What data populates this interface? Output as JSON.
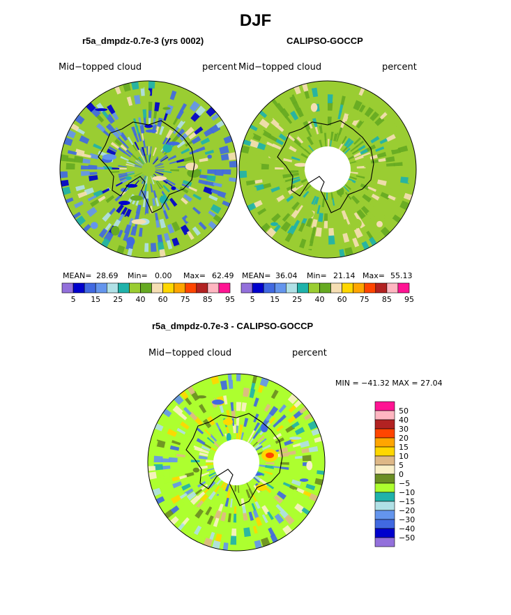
{
  "figure": {
    "title": "DJF",
    "diff_title": "r5a_dmpdz-0.7e-3 - CALIPSO-GOCCP"
  },
  "panels": [
    {
      "title": "r5a_dmpdz-0.7e-3 (yrs 0002)",
      "variable": "Mid−topped cloud",
      "units": "percent",
      "stats": {
        "mean_label": "MEAN=",
        "mean": "28.69",
        "min_label": "Min=",
        "min": "0.00",
        "max_label": "Max=",
        "max": "62.49"
      }
    },
    {
      "title": "CALIPSO-GOCCP",
      "variable": "Mid−topped cloud",
      "units": "percent",
      "stats": {
        "mean_label": "MEAN=",
        "mean": "36.04",
        "min_label": "Min=",
        "min": "21.14",
        "max_label": "Max=",
        "max": "55.13"
      }
    },
    {
      "title": "r5a_dmpdz-0.7e-3 - CALIPSO-GOCCP",
      "variable": "Mid−topped cloud",
      "units": "percent",
      "minmax": "MIN = −41.32 MAX =   27.04"
    }
  ],
  "chart_data": [
    {
      "type": "heatmap",
      "projection": "south-polar-stereographic",
      "title": "r5a_dmpdz-0.7e-3 (yrs 0002)",
      "variable": "Mid-topped cloud",
      "units": "percent",
      "mean": 28.69,
      "min": 0.0,
      "max": 62.49,
      "colorbar": {
        "orientation": "horizontal",
        "levels": [
          5,
          10,
          15,
          20,
          25,
          30,
          40,
          50,
          60,
          70,
          75,
          80,
          85,
          90,
          95
        ],
        "tick_labels": [
          "5",
          "15",
          "25",
          "40",
          "60",
          "75",
          "85",
          "95"
        ],
        "colors": [
          "#9370db",
          "#0000cd",
          "#4169e1",
          "#6495ed",
          "#b0e0e6",
          "#20b2aa",
          "#9acd32",
          "#66aa22",
          "#f5deb3",
          "#ffd700",
          "#ffa500",
          "#ff4500",
          "#b22222",
          "#ffb6c1",
          "#ff1493"
        ]
      }
    },
    {
      "type": "heatmap",
      "projection": "south-polar-stereographic",
      "title": "CALIPSO-GOCCP",
      "variable": "Mid-topped cloud",
      "units": "percent",
      "mean": 36.04,
      "min": 21.14,
      "max": 55.13,
      "colorbar": {
        "orientation": "horizontal",
        "levels": [
          5,
          10,
          15,
          20,
          25,
          30,
          40,
          50,
          60,
          70,
          75,
          80,
          85,
          90,
          95
        ],
        "tick_labels": [
          "5",
          "15",
          "25",
          "40",
          "60",
          "75",
          "85",
          "95"
        ],
        "colors": [
          "#9370db",
          "#0000cd",
          "#4169e1",
          "#6495ed",
          "#b0e0e6",
          "#20b2aa",
          "#9acd32",
          "#66aa22",
          "#f5deb3",
          "#ffd700",
          "#ffa500",
          "#ff4500",
          "#b22222",
          "#ffb6c1",
          "#ff1493"
        ]
      }
    },
    {
      "type": "heatmap",
      "projection": "south-polar-stereographic",
      "title": "r5a_dmpdz-0.7e-3 - CALIPSO-GOCCP",
      "variable": "Mid-topped cloud",
      "units": "percent",
      "min": -41.32,
      "max": 27.04,
      "colorbar": {
        "orientation": "vertical",
        "tick_labels": [
          "50",
          "40",
          "30",
          "20",
          "15",
          "10",
          "5",
          "0",
          "−5",
          "−10",
          "−15",
          "−20",
          "−30",
          "−40",
          "−50"
        ],
        "colors": [
          "#ff1493",
          "#ffb6c1",
          "#b22222",
          "#ff4500",
          "#ffa500",
          "#ffd700",
          "#deb887",
          "#faf0c8",
          "#6b8e23",
          "#adff2f",
          "#20b2aa",
          "#b0e0e6",
          "#6495ed",
          "#4169e1",
          "#0000cd",
          "#9370db"
        ]
      }
    }
  ]
}
